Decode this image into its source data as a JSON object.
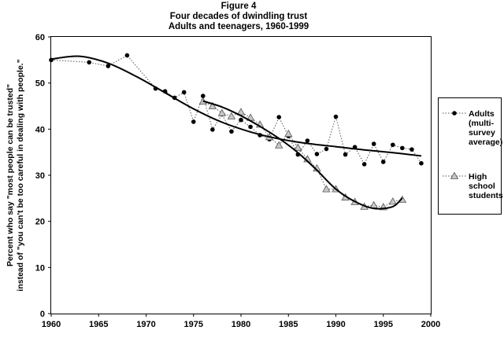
{
  "figure": {
    "label": "Figure 4",
    "title": "Four decades of dwindling trust",
    "subtitle": "Adults and teenagers, 1960-1999"
  },
  "chart_data": {
    "type": "line",
    "title": "Four decades of dwindling trust",
    "subtitle": "Adults and teenagers, 1960-1999",
    "ylabel_line1": "Percent who say \"most people can be trusted\"",
    "ylabel_line2": "instead of \"you can't be too careful in dealing with people.\"",
    "xlabel": "",
    "xlim": [
      1960,
      2000
    ],
    "ylim": [
      0,
      60
    ],
    "xticks": [
      1960,
      1965,
      1970,
      1975,
      1980,
      1985,
      1990,
      1995,
      2000
    ],
    "yticks": [
      0,
      10,
      20,
      30,
      40,
      50,
      60
    ],
    "grid": false,
    "legend_position": "right",
    "series": [
      {
        "name": "Adults (multi-survey average)",
        "legend_lines": [
          "Adults",
          "(multi-",
          "survey",
          "average)"
        ],
        "marker": "circle",
        "line_style": "dotted",
        "color": "#000000",
        "x": [
          1960,
          1964,
          1966,
          1968,
          1971,
          1972,
          1973,
          1974,
          1975,
          1976,
          1977,
          1978,
          1979,
          1980,
          1981,
          1982,
          1983,
          1984,
          1985,
          1986,
          1987,
          1988,
          1989,
          1990,
          1991,
          1992,
          1993,
          1994,
          1995,
          1996,
          1997,
          1998,
          1999
        ],
        "y": [
          55,
          54.5,
          53.7,
          56,
          48.8,
          48.2,
          46.8,
          48,
          41.6,
          47.2,
          39.9,
          43.2,
          39.5,
          42,
          40.5,
          38.7,
          37.8,
          42.6,
          38.5,
          34.5,
          37.5,
          34.6,
          35.7,
          42.7,
          34.5,
          36.1,
          32.4,
          36.8,
          32.9,
          36.6,
          35.9,
          35.6,
          32.6
        ]
      },
      {
        "name": "High school students",
        "legend_lines": [
          "High",
          "school",
          "students"
        ],
        "marker": "triangle",
        "line_style": "dotted",
        "color": "#808080",
        "x": [
          1976,
          1977,
          1978,
          1979,
          1980,
          1981,
          1982,
          1983,
          1984,
          1985,
          1986,
          1987,
          1988,
          1989,
          1990,
          1991,
          1992,
          1993,
          1994,
          1995,
          1996,
          1997
        ],
        "y": [
          46,
          45,
          43.5,
          42.8,
          43.7,
          42.5,
          41,
          38.3,
          36.5,
          39,
          36,
          33.5,
          31.5,
          27,
          27,
          25.2,
          24.2,
          23.2,
          23.5,
          23.1,
          24.3,
          24.7
        ]
      }
    ],
    "trend_lines": [
      {
        "x": [
          1960,
          1963,
          1966,
          1969,
          1972,
          1975,
          1978,
          1981,
          1984,
          1987,
          1990,
          1993,
          1996,
          1999
        ],
        "y": [
          55.2,
          55.8,
          54.3,
          51.4,
          47.9,
          44.4,
          41.5,
          39.4,
          37.9,
          36.9,
          36.2,
          35.5,
          34.9,
          34.2
        ]
      },
      {
        "x": [
          1976,
          1978,
          1980,
          1982,
          1984,
          1986,
          1988,
          1990,
          1992,
          1994,
          1996,
          1997
        ],
        "y": [
          46.1,
          44.8,
          42.9,
          40.6,
          38.0,
          34.9,
          31.1,
          27.0,
          24.3,
          22.8,
          23.2,
          25.1
        ]
      }
    ]
  }
}
